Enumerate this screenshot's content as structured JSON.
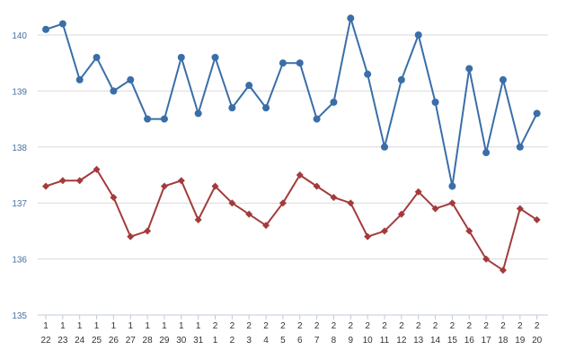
{
  "chart_data": {
    "type": "line",
    "categories": [
      [
        "1",
        "22"
      ],
      [
        "1",
        "23"
      ],
      [
        "1",
        "24"
      ],
      [
        "1",
        "25"
      ],
      [
        "1",
        "26"
      ],
      [
        "1",
        "27"
      ],
      [
        "1",
        "28"
      ],
      [
        "1",
        "29"
      ],
      [
        "1",
        "30"
      ],
      [
        "1",
        "31"
      ],
      [
        "2",
        "1"
      ],
      [
        "2",
        "2"
      ],
      [
        "2",
        "3"
      ],
      [
        "2",
        "4"
      ],
      [
        "2",
        "5"
      ],
      [
        "2",
        "6"
      ],
      [
        "2",
        "7"
      ],
      [
        "2",
        "8"
      ],
      [
        "2",
        "9"
      ],
      [
        "2",
        "10"
      ],
      [
        "2",
        "11"
      ],
      [
        "2",
        "12"
      ],
      [
        "2",
        "13"
      ],
      [
        "2",
        "14"
      ],
      [
        "2",
        "15"
      ],
      [
        "2",
        "16"
      ],
      [
        "2",
        "17"
      ],
      [
        "2",
        "18"
      ],
      [
        "2",
        "19"
      ],
      [
        "2",
        "20"
      ]
    ],
    "series": [
      {
        "color": "#3a6ea8",
        "marker": "circle",
        "values": [
          140.1,
          140.2,
          139.2,
          139.6,
          139.0,
          139.2,
          138.5,
          138.5,
          139.6,
          138.6,
          139.6,
          138.7,
          139.1,
          138.7,
          139.5,
          139.5,
          138.5,
          138.8,
          140.3,
          139.3,
          138.0,
          139.2,
          140.0,
          138.8,
          137.3,
          139.4,
          137.9,
          139.2,
          138.0,
          138.6
        ]
      },
      {
        "color": "#a33b3b",
        "marker": "diamond",
        "values": [
          137.3,
          137.4,
          137.4,
          137.6,
          137.1,
          136.4,
          136.5,
          137.3,
          137.4,
          136.7,
          137.3,
          137.0,
          136.8,
          136.6,
          137.0,
          137.5,
          137.3,
          137.1,
          137.0,
          136.4,
          136.5,
          136.8,
          137.2,
          136.9,
          137.0,
          136.5,
          136.0,
          135.8,
          136.9,
          136.7
        ]
      }
    ],
    "yticks": [
      135,
      136,
      137,
      138,
      139,
      140
    ],
    "ylim": [
      135,
      140.5
    ],
    "grid": true,
    "legend": "none"
  }
}
